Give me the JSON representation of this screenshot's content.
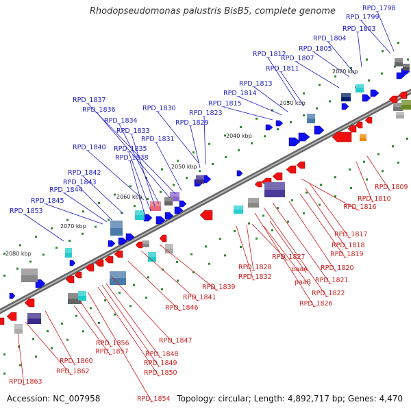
{
  "title": "Rhodopseudomonas palustris BisB5, complete genome",
  "footer": {
    "accession": "Accession: NC_007958",
    "topology": "Topology: circular; Length: 4,892,717 bp; Genes: 4,470"
  },
  "colors": {
    "forward_gene": "#1010ee",
    "reverse_gene": "#ee1010",
    "backbone": "#888888"
  },
  "ticks": [
    "2020 kbp",
    "2030 kbp",
    "2040 kbp",
    "2050 kbp",
    "2060 kbp",
    "2070 kbp",
    "2080 kbp"
  ],
  "forward_labels": [
    "RPD_1798",
    "RPD_1799",
    "RPD_1803",
    "RPD_1804",
    "RPD_1805",
    "RPD_1807",
    "RPD_1812",
    "RPD_1811",
    "RPD_1813",
    "RPD_1814",
    "RPD_1815",
    "RPD_1830",
    "RPD_1823",
    "RPD_1829",
    "RPD_1837",
    "RPD_1836",
    "RPD_1834",
    "RPD_1833",
    "RPD_1831",
    "RPD_1835",
    "RPD_1840",
    "RPD_1838",
    "RPD_1842",
    "RPD_1843",
    "RPD_1844",
    "RPD_1845",
    "RPD_1853"
  ],
  "reverse_labels": [
    "RPD_1809",
    "RPD_1810",
    "RPD_1816",
    "RPD_1817",
    "RPD_1818",
    "RPD_1819",
    "RPD_1820",
    "RPD_1821",
    "RPD_1822",
    "RPD_1826",
    "paaA",
    "paaB",
    "RPD_1827",
    "RPD_1828",
    "RPD_1832",
    "RPD_1839",
    "RPD_1841",
    "RPD_1846",
    "RPD_1847",
    "RPD_1848",
    "RPD_1849",
    "RPD_1850",
    "RPD_1854",
    "RPD_1856",
    "RPD_1857",
    "RPD_1860",
    "RPD_1862",
    "RPD_1863"
  ]
}
